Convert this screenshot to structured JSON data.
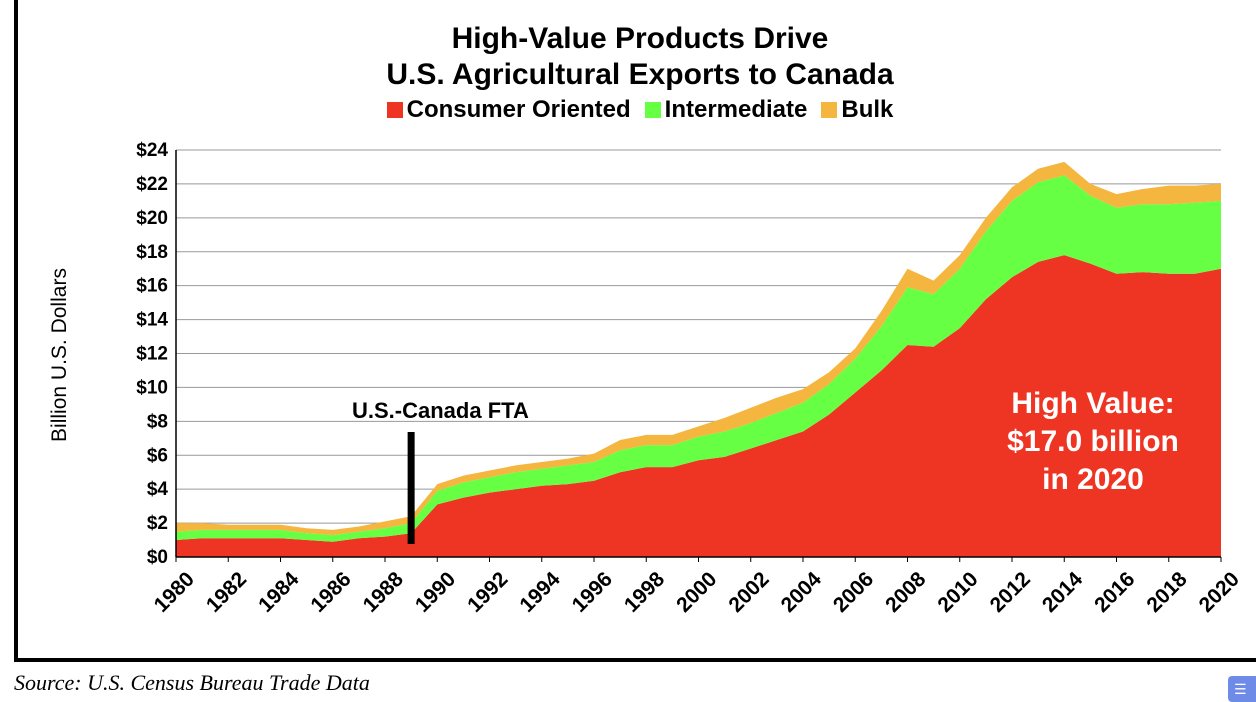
{
  "chart_data": {
    "type": "area",
    "stacked": true,
    "title_lines": [
      "High-Value Products Drive",
      "U.S. Agricultural Exports to Canada"
    ],
    "ylabel": "Billion U.S. Dollars",
    "xlabel": "",
    "x": [
      1980,
      1981,
      1982,
      1983,
      1984,
      1985,
      1986,
      1987,
      1988,
      1989,
      1990,
      1991,
      1992,
      1993,
      1994,
      1995,
      1996,
      1997,
      1998,
      1999,
      2000,
      2001,
      2002,
      2003,
      2004,
      2005,
      2006,
      2007,
      2008,
      2009,
      2010,
      2011,
      2012,
      2013,
      2014,
      2015,
      2016,
      2017,
      2018,
      2019,
      2020
    ],
    "xlim": [
      1980,
      2020
    ],
    "ylim": [
      0,
      24
    ],
    "x_ticks": [
      "1980",
      "1982",
      "1984",
      "1986",
      "1988",
      "1990",
      "1992",
      "1994",
      "1996",
      "1998",
      "2000",
      "2002",
      "2004",
      "2006",
      "2008",
      "2010",
      "2012",
      "2014",
      "2016",
      "2018",
      "2020"
    ],
    "y_ticks": [
      "$0",
      "$2",
      "$4",
      "$6",
      "$8",
      "$10",
      "$12",
      "$14",
      "$16",
      "$18",
      "$20",
      "$22",
      "$24"
    ],
    "grid": true,
    "legend_position": "top",
    "series": [
      {
        "name": "Consumer Oriented",
        "color": "#ee3524",
        "values": [
          1.0,
          1.1,
          1.1,
          1.1,
          1.1,
          1.0,
          0.9,
          1.1,
          1.2,
          1.4,
          3.1,
          3.5,
          3.8,
          4.0,
          4.2,
          4.3,
          4.5,
          5.0,
          5.3,
          5.3,
          5.7,
          5.9,
          6.4,
          6.9,
          7.4,
          8.4,
          9.7,
          11.0,
          12.5,
          12.4,
          13.5,
          15.2,
          16.5,
          17.4,
          17.8,
          17.3,
          16.7,
          16.8,
          16.7,
          16.7,
          17.0
        ]
      },
      {
        "name": "Intermediate",
        "color": "#66ff44",
        "values": [
          0.5,
          0.5,
          0.5,
          0.5,
          0.5,
          0.4,
          0.4,
          0.4,
          0.5,
          0.6,
          0.8,
          0.9,
          0.9,
          1.0,
          1.0,
          1.1,
          1.1,
          1.3,
          1.3,
          1.3,
          1.4,
          1.5,
          1.5,
          1.6,
          1.7,
          1.8,
          2.0,
          2.6,
          3.4,
          3.1,
          3.5,
          4.0,
          4.5,
          4.7,
          4.7,
          4.0,
          3.9,
          4.0,
          4.1,
          4.2,
          4.0
        ]
      },
      {
        "name": "Bulk",
        "color": "#f4b63f",
        "values": [
          0.5,
          0.4,
          0.3,
          0.3,
          0.3,
          0.3,
          0.3,
          0.3,
          0.4,
          0.4,
          0.4,
          0.4,
          0.4,
          0.4,
          0.4,
          0.4,
          0.5,
          0.6,
          0.6,
          0.6,
          0.6,
          0.8,
          0.9,
          0.9,
          0.8,
          0.7,
          0.6,
          0.9,
          1.1,
          0.8,
          0.8,
          0.8,
          0.8,
          0.8,
          0.8,
          0.7,
          0.8,
          0.9,
          1.1,
          1.0,
          1.0
        ]
      }
    ],
    "annotations": [
      {
        "id": "fta",
        "text": "U.S.-Canada FTA",
        "x": 1989
      },
      {
        "id": "high_value",
        "lines": [
          "High Value:",
          "$17.0 billion",
          "in 2020"
        ]
      }
    ]
  },
  "source": "Source: U.S. Census Bureau Trade Data"
}
